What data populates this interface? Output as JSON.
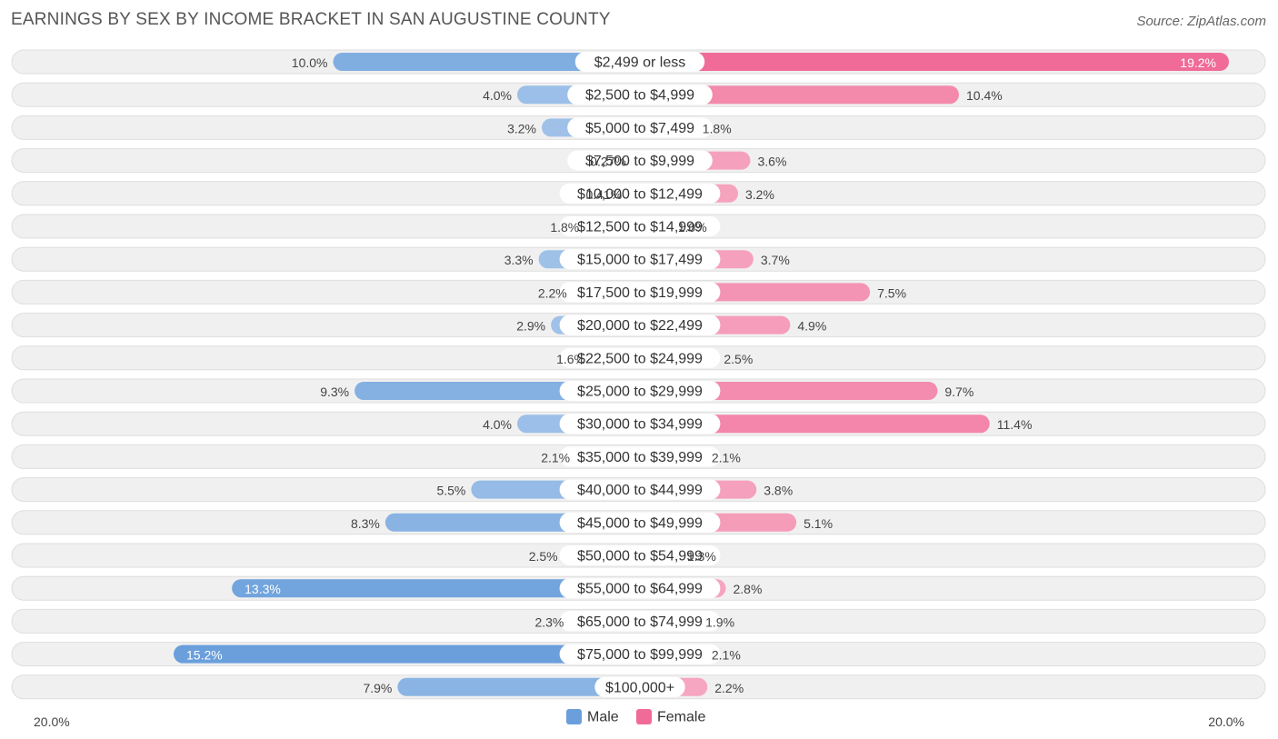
{
  "title": "EARNINGS BY SEX BY INCOME BRACKET IN SAN AUGUSTINE COUNTY",
  "source": "Source: ZipAtlas.com",
  "chart_data": {
    "type": "bar",
    "orientation": "horizontal-diverging",
    "categories": [
      "$2,499 or less",
      "$2,500 to $4,999",
      "$5,000 to $7,499",
      "$7,500 to $9,999",
      "$10,000 to $12,499",
      "$12,500 to $14,999",
      "$15,000 to $17,499",
      "$17,500 to $19,999",
      "$20,000 to $22,499",
      "$22,500 to $24,999",
      "$25,000 to $29,999",
      "$30,000 to $34,999",
      "$35,000 to $39,999",
      "$40,000 to $44,999",
      "$45,000 to $49,999",
      "$50,000 to $54,999",
      "$55,000 to $64,999",
      "$65,000 to $74,999",
      "$75,000 to $99,999",
      "$100,000+"
    ],
    "series": [
      {
        "name": "Male",
        "color": "#6a9fdc",
        "values": [
          10.0,
          4.0,
          3.2,
          0.27,
          0.41,
          1.8,
          3.3,
          2.2,
          2.9,
          1.6,
          9.3,
          4.0,
          2.1,
          5.5,
          8.3,
          2.5,
          13.3,
          2.3,
          15.2,
          7.9
        ],
        "labels": [
          "10.0%",
          "4.0%",
          "3.2%",
          "0.27%",
          "0.41%",
          "1.8%",
          "3.3%",
          "2.2%",
          "2.9%",
          "1.6%",
          "9.3%",
          "4.0%",
          "2.1%",
          "5.5%",
          "8.3%",
          "2.5%",
          "13.3%",
          "2.3%",
          "15.2%",
          "7.9%"
        ]
      },
      {
        "name": "Female",
        "color": "#f06b97",
        "values": [
          19.2,
          10.4,
          1.8,
          3.6,
          3.2,
          1.0,
          3.7,
          7.5,
          4.9,
          2.5,
          9.7,
          11.4,
          2.1,
          3.8,
          5.1,
          1.3,
          2.8,
          1.9,
          2.1,
          2.2
        ],
        "labels": [
          "19.2%",
          "10.4%",
          "1.8%",
          "3.6%",
          "3.2%",
          "1.0%",
          "3.7%",
          "7.5%",
          "4.9%",
          "2.5%",
          "9.7%",
          "11.4%",
          "2.1%",
          "3.8%",
          "5.1%",
          "1.3%",
          "2.8%",
          "1.9%",
          "2.1%",
          "2.2%"
        ]
      }
    ],
    "axis_min_label": "20.0%",
    "axis_max_label": "20.0%",
    "xlim": [
      -20,
      20
    ],
    "legend": [
      "Male",
      "Female"
    ],
    "legend_position": "bottom-center"
  }
}
